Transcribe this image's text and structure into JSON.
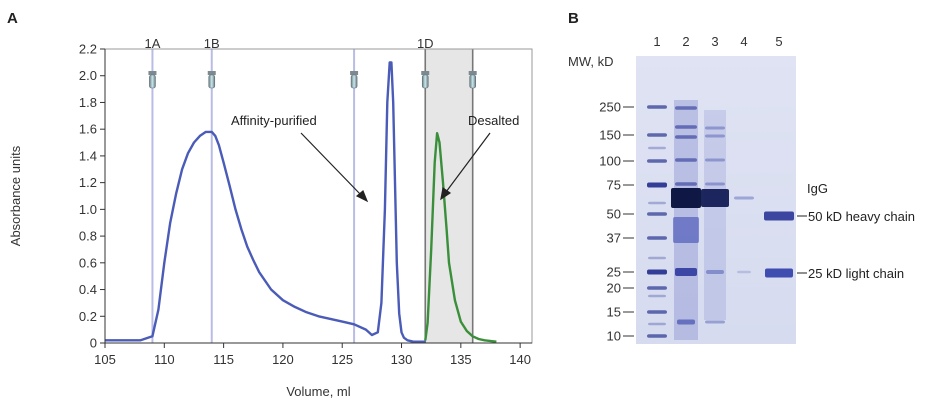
{
  "panels": {
    "a_label": "A",
    "b_label": "B"
  },
  "chart_data": [
    {
      "type": "line",
      "panel": "A",
      "title": "",
      "xlabel": "Volume, ml",
      "ylabel": "Absorbance units",
      "xlim": [
        105,
        141
      ],
      "ylim": [
        0,
        2.2
      ],
      "x_ticks": [
        105,
        110,
        115,
        120,
        125,
        130,
        135,
        140
      ],
      "y_ticks": [
        0,
        0.2,
        0.4,
        0.6,
        0.8,
        1.0,
        1.2,
        1.4,
        1.6,
        1.8,
        2.0,
        2.2
      ],
      "y_tick_labels": [
        "0",
        "0.2",
        "0.4",
        "0.6",
        "0.8",
        "1.0",
        "1.2",
        "1.4",
        "1.6",
        "1.8",
        "2.0",
        "2.2"
      ],
      "grid": false,
      "series": [
        {
          "color": "#4a5bb8",
          "x": [
            105,
            108,
            109,
            109.5,
            110,
            110.5,
            111,
            111.5,
            112,
            112.5,
            113,
            113.5,
            114,
            114.3,
            114.6,
            115,
            115.5,
            116,
            116.5,
            117,
            117.5,
            118,
            119,
            120,
            121,
            122,
            123,
            124,
            125,
            126,
            127,
            127.5,
            128,
            128.3,
            128.6,
            128.8,
            129,
            129.15,
            129.3,
            129.45,
            129.6,
            129.8,
            130,
            130.2,
            130.5,
            131,
            131.5,
            132
          ],
          "y": [
            0.02,
            0.02,
            0.05,
            0.25,
            0.6,
            0.9,
            1.12,
            1.3,
            1.42,
            1.5,
            1.55,
            1.58,
            1.58,
            1.55,
            1.48,
            1.35,
            1.18,
            1.0,
            0.85,
            0.72,
            0.62,
            0.53,
            0.4,
            0.32,
            0.27,
            0.23,
            0.2,
            0.18,
            0.16,
            0.14,
            0.1,
            0.06,
            0.08,
            0.3,
            1.0,
            1.8,
            2.1,
            2.1,
            1.8,
            1.2,
            0.6,
            0.22,
            0.08,
            0.04,
            0.02,
            0.01,
            0.01,
            0.01
          ]
        },
        {
          "color": "#3a8f3a",
          "x": [
            132,
            132.2,
            132.5,
            132.8,
            133,
            133.2,
            133.5,
            133.8,
            134,
            134.5,
            135,
            135.5,
            136,
            136.5,
            137,
            138
          ],
          "y": [
            0.02,
            0.15,
            0.7,
            1.35,
            1.57,
            1.5,
            1.2,
            0.85,
            0.6,
            0.32,
            0.16,
            0.09,
            0.05,
            0.03,
            0.02,
            0.01
          ]
        }
      ],
      "shaded_region": {
        "x": [
          132,
          136
        ],
        "color": "#e6e6e6"
      },
      "fraction_markers": [
        {
          "x": 109,
          "label": "1A"
        },
        {
          "x": 114,
          "label": "1B"
        },
        {
          "x": 126,
          "label": ""
        },
        {
          "x": 132,
          "label": "1D"
        },
        {
          "x": 136,
          "label": ""
        }
      ],
      "annotations": [
        {
          "text": "Affinity-purified"
        },
        {
          "text": "Desalted"
        }
      ]
    },
    {
      "type": "table",
      "panel": "B",
      "mw_label": "MW, kD",
      "lanes": [
        "1",
        "2",
        "3",
        "4",
        "5"
      ],
      "mw_markers": [
        250,
        150,
        100,
        75,
        50,
        37,
        25,
        20,
        15,
        10
      ],
      "mw_marker_labels": [
        "250",
        "150",
        "100",
        "75",
        "50",
        "37",
        "25",
        "20",
        "15",
        "10"
      ],
      "band_labels": [
        {
          "text": "IgG"
        },
        {
          "text": "50 kD heavy chain"
        },
        {
          "text": "25 kD light chain"
        }
      ]
    }
  ]
}
